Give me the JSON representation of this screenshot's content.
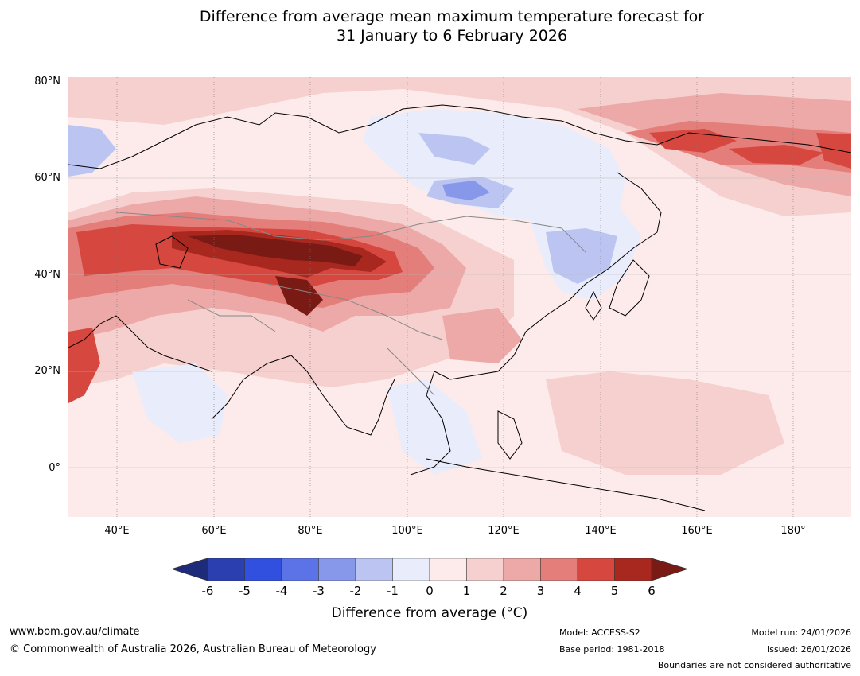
{
  "title_line1": "Difference from average mean maximum temperature forecast for",
  "title_line2": "31 January to 6 February 2026",
  "map": {
    "lat_labels": [
      "80°N",
      "60°N",
      "40°N",
      "20°N",
      "0°"
    ],
    "lon_labels": [
      "40°E",
      "60°E",
      "80°E",
      "100°E",
      "120°E",
      "140°E",
      "160°E",
      "180°"
    ]
  },
  "colorbar": {
    "ticks": [
      "-6",
      "-5",
      "-4",
      "-3",
      "-2",
      "-1",
      "0",
      "1",
      "2",
      "3",
      "4",
      "5",
      "6"
    ],
    "colors": [
      "#1e2a7a",
      "#2b3fb0",
      "#3150e0",
      "#5b73e6",
      "#8797ea",
      "#bcc5f2",
      "#e8ecfb",
      "#fcebea",
      "#f5d0cf",
      "#eca9a7",
      "#e37e7a",
      "#d6483f",
      "#a8281f",
      "#7a1a15"
    ],
    "label": "Difference from average (°C)"
  },
  "footer": {
    "website": "www.bom.gov.au/climate",
    "copyright": "© Commonwealth of Australia 2026, Australian Bureau of Meteorology",
    "model": "Model: ACCESS-S2",
    "base_period": "Base period: 1981-2018",
    "model_run": "Model run: 24/01/2026",
    "issued": "Issued: 26/01/2026",
    "disclaimer": "Boundaries are not considered authoritative"
  }
}
